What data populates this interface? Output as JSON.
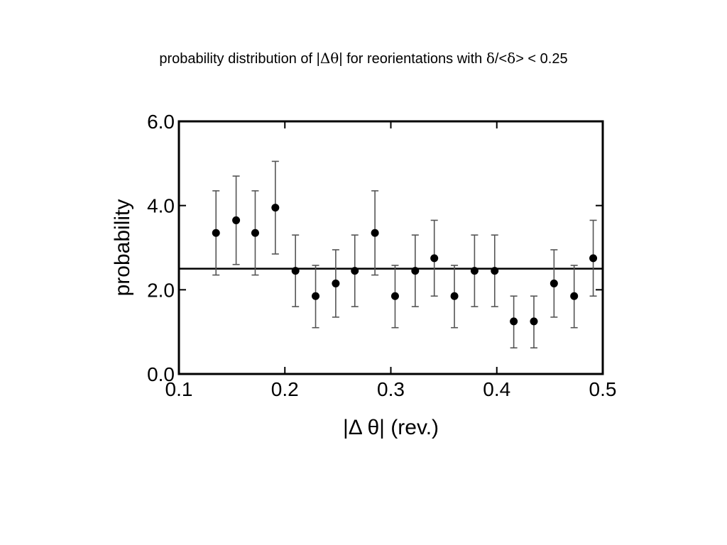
{
  "slide": {
    "title_prefix": "probability distribution of |",
    "title_delta": "Δ",
    "title_theta": "θ",
    "title_mid": "| for reorientations with ",
    "title_delta_small_1": "δ",
    "title_ratio": "/<",
    "title_delta_small_2": "δ",
    "title_suffix": "> < 0.25"
  },
  "chart_data": {
    "type": "scatter",
    "title": "probability distribution of |Δθ| for reorientations with δ/<δ> < 0.25",
    "xlabel": "|Δ θ| (rev.)",
    "ylabel": "probability",
    "xlim": [
      0.1,
      0.5
    ],
    "ylim": [
      0.0,
      6.0
    ],
    "xticks": [
      0.1,
      0.2,
      0.3,
      0.4,
      0.5
    ],
    "xtick_labels": [
      "0.1",
      "0.2",
      "0.3",
      "0.4",
      "0.5"
    ],
    "yticks": [
      0.0,
      2.0,
      4.0,
      6.0
    ],
    "ytick_labels": [
      "0.0",
      "2.0",
      "4.0",
      "6.0"
    ],
    "grid": false,
    "reference_line": {
      "y": 2.5
    },
    "series": [
      {
        "marker": "filled-circle",
        "color": "#000000",
        "x": [
          0.135,
          0.154,
          0.172,
          0.191,
          0.21,
          0.229,
          0.248,
          0.266,
          0.285,
          0.304,
          0.323,
          0.341,
          0.36,
          0.379,
          0.398,
          0.416,
          0.435,
          0.454,
          0.473,
          0.491
        ],
        "y": [
          3.35,
          3.65,
          3.35,
          3.95,
          2.45,
          1.85,
          2.15,
          2.45,
          3.35,
          1.85,
          2.45,
          2.75,
          1.85,
          2.45,
          2.45,
          1.25,
          1.25,
          2.15,
          1.85,
          2.75
        ],
        "error_low": [
          2.35,
          2.6,
          2.35,
          2.85,
          1.6,
          1.1,
          1.35,
          1.6,
          2.35,
          1.1,
          1.6,
          1.85,
          1.1,
          1.6,
          1.6,
          0.62,
          0.62,
          1.35,
          1.1,
          1.85
        ],
        "error_high": [
          4.35,
          4.7,
          4.35,
          5.05,
          3.3,
          2.58,
          2.95,
          3.3,
          4.35,
          2.58,
          3.3,
          3.65,
          2.58,
          3.3,
          3.3,
          1.85,
          1.85,
          2.95,
          2.58,
          3.65
        ]
      }
    ]
  }
}
